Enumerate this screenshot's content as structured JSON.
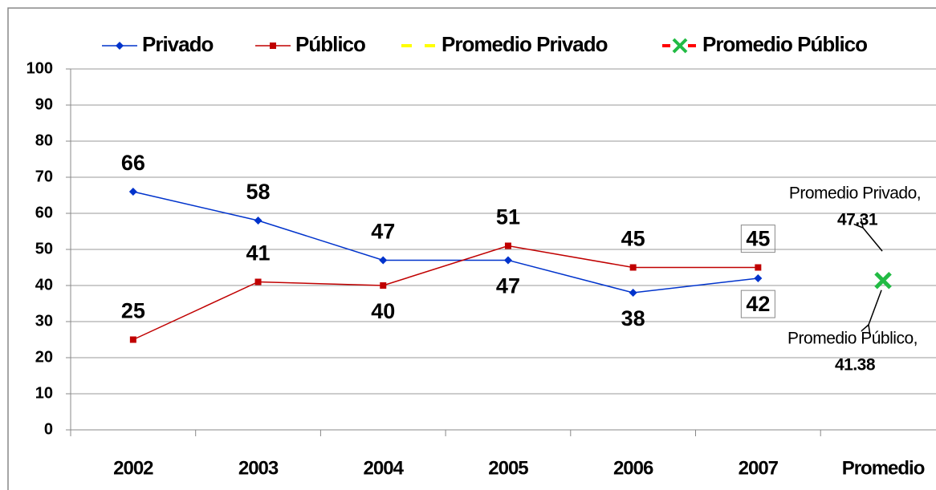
{
  "chart_data": {
    "type": "line",
    "categories": [
      "2002",
      "2003",
      "2004",
      "2005",
      "2006",
      "2007",
      "Promedio"
    ],
    "series": [
      {
        "name": "Privado",
        "color": "#0033cc",
        "values": [
          66,
          58,
          47,
          47,
          38,
          42,
          null
        ]
      },
      {
        "name": "Público",
        "color": "#c00000",
        "values": [
          25,
          41,
          40,
          51,
          45,
          45,
          null
        ]
      },
      {
        "name": "Promedio Privado",
        "color": "#ffff00",
        "values": [
          null,
          null,
          null,
          null,
          null,
          null,
          47.31
        ],
        "value_labels": [
          null,
          null,
          null,
          null,
          null,
          null,
          [
            "Promedio Privado,",
            "47.31"
          ]
        ]
      },
      {
        "name": "Promedio Público",
        "color": "#22bb44",
        "values": [
          null,
          null,
          null,
          null,
          null,
          null,
          41.38
        ],
        "value_labels": [
          null,
          null,
          null,
          null,
          null,
          null,
          [
            "Promedio Público,",
            "41.38"
          ]
        ]
      }
    ],
    "ylim": [
      0,
      100
    ],
    "yticks": [
      0,
      10,
      20,
      30,
      40,
      50,
      60,
      70,
      80,
      90,
      100
    ],
    "grid": true,
    "legend": "top"
  }
}
